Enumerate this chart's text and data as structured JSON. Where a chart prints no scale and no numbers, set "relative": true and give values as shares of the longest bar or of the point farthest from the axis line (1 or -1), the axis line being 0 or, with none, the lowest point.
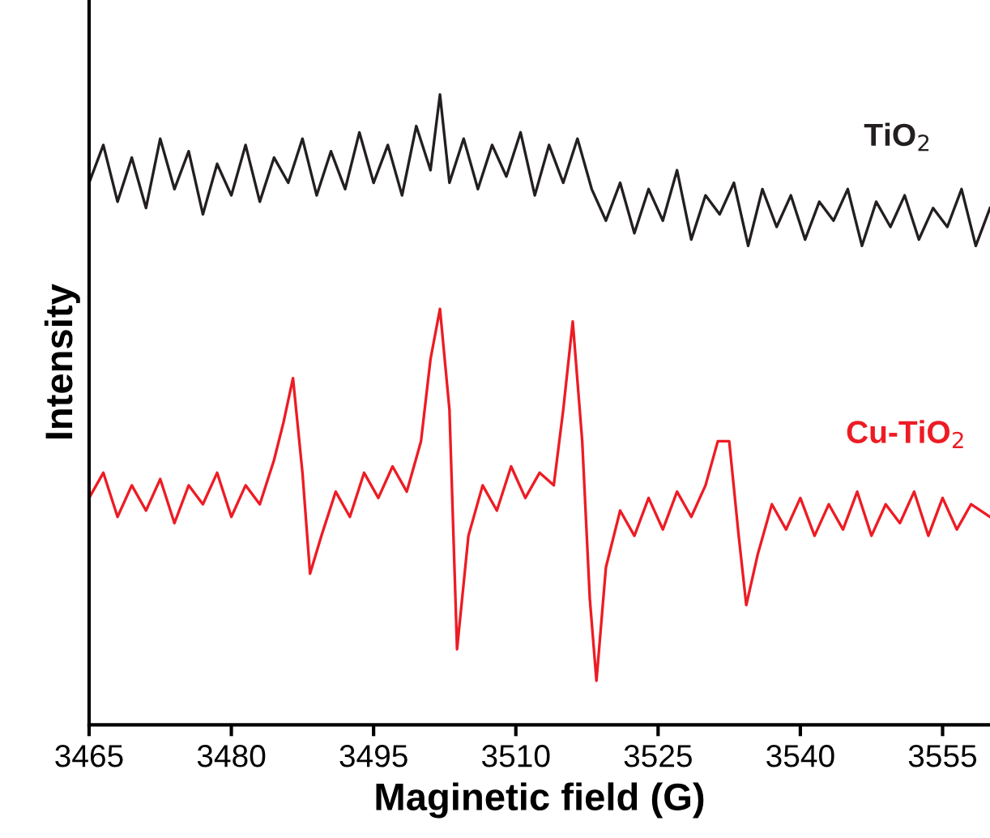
{
  "chart_data": {
    "type": "line",
    "xlabel": "Maginetic field (G)",
    "ylabel": "Intensity",
    "relative": true,
    "xlim": [
      3465,
      3560
    ],
    "xticks": [
      3465,
      3480,
      3495,
      3510,
      3525,
      3540,
      3555
    ],
    "grid": false,
    "legend": false,
    "marker": "none",
    "line_style": "solid",
    "series": [
      {
        "name": "TiO$_{2}$",
        "color": "#231f20",
        "x": [
          3465,
          3466.5,
          3468,
          3469.5,
          3471,
          3472.5,
          3474,
          3475.5,
          3477,
          3478.5,
          3480,
          3481.5,
          3483,
          3484.5,
          3486,
          3487.5,
          3489,
          3490.5,
          3492,
          3493.5,
          3495,
          3496.5,
          3498,
          3499.5,
          3501,
          3502,
          3503,
          3504.5,
          3506,
          3507.5,
          3509,
          3510.5,
          3512,
          3513.5,
          3515,
          3516.5,
          3518,
          3519.5,
          3521,
          3522.5,
          3524,
          3525.5,
          3527,
          3528.5,
          3530,
          3531.5,
          3533,
          3534.5,
          3536,
          3537.5,
          3539,
          3540.5,
          3542,
          3543.5,
          3545,
          3546.5,
          3548,
          3549.5,
          3551,
          3552.5,
          3554,
          3555.5,
          3557,
          3558.5,
          3560
        ],
        "values": [
          0.86,
          0.92,
          0.83,
          0.9,
          0.82,
          0.93,
          0.85,
          0.91,
          0.81,
          0.89,
          0.84,
          0.92,
          0.83,
          0.9,
          0.86,
          0.93,
          0.84,
          0.91,
          0.85,
          0.94,
          0.86,
          0.92,
          0.84,
          0.95,
          0.88,
          1.0,
          0.86,
          0.93,
          0.85,
          0.92,
          0.87,
          0.94,
          0.84,
          0.92,
          0.86,
          0.93,
          0.85,
          0.8,
          0.86,
          0.78,
          0.85,
          0.8,
          0.88,
          0.77,
          0.84,
          0.81,
          0.86,
          0.76,
          0.85,
          0.79,
          0.84,
          0.77,
          0.83,
          0.8,
          0.85,
          0.76,
          0.83,
          0.79,
          0.84,
          0.77,
          0.82,
          0.79,
          0.85,
          0.76,
          0.82
        ]
      },
      {
        "name": "Cu-TiO$_{2}$",
        "color": "#ed1c24",
        "x": [
          3465,
          3466.5,
          3468,
          3469.5,
          3471,
          3472.5,
          3474,
          3475.5,
          3477,
          3478.5,
          3480,
          3481.5,
          3483,
          3484.5,
          3485.5,
          3486.5,
          3487.5,
          3488.3,
          3489.5,
          3491,
          3492.5,
          3494,
          3495.5,
          3497,
          3498.5,
          3500,
          3501,
          3502,
          3503,
          3503.8,
          3505,
          3506.5,
          3508,
          3509.5,
          3511,
          3512.5,
          3514,
          3515,
          3516,
          3517,
          3517.8,
          3518.5,
          3519.5,
          3521,
          3522.5,
          3524,
          3525.5,
          3527,
          3528.5,
          3530,
          3531.3,
          3532.5,
          3533.5,
          3534.3,
          3535.5,
          3537,
          3538.5,
          3540,
          3541.5,
          3543,
          3544.5,
          3546,
          3547.5,
          3549,
          3550.5,
          3552,
          3553.5,
          3555,
          3556.5,
          3558,
          3560
        ],
        "values": [
          0.36,
          0.4,
          0.33,
          0.38,
          0.34,
          0.39,
          0.32,
          0.38,
          0.35,
          0.4,
          0.33,
          0.38,
          0.35,
          0.42,
          0.48,
          0.55,
          0.4,
          0.24,
          0.3,
          0.37,
          0.33,
          0.4,
          0.36,
          0.41,
          0.37,
          0.45,
          0.58,
          0.66,
          0.5,
          0.12,
          0.3,
          0.38,
          0.34,
          0.41,
          0.36,
          0.4,
          0.38,
          0.5,
          0.64,
          0.45,
          0.2,
          0.07,
          0.25,
          0.34,
          0.3,
          0.36,
          0.31,
          0.37,
          0.33,
          0.38,
          0.45,
          0.45,
          0.3,
          0.19,
          0.27,
          0.35,
          0.31,
          0.36,
          0.3,
          0.35,
          0.31,
          0.37,
          0.3,
          0.35,
          0.32,
          0.37,
          0.3,
          0.36,
          0.31,
          0.35,
          0.33
        ]
      }
    ]
  }
}
